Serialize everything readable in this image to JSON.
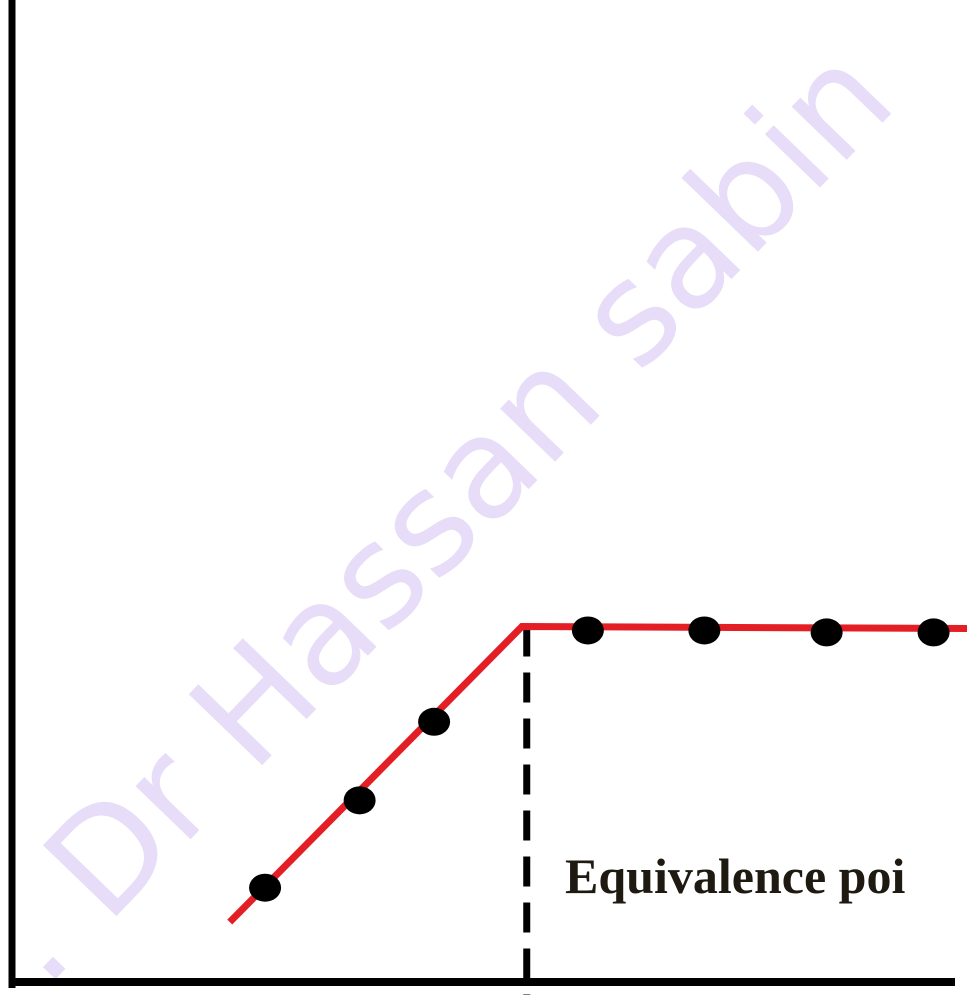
{
  "chart_data": {
    "type": "line",
    "watermark": ". Dr Hassan sabin",
    "annotation": "Equivalence poi",
    "xlim": [
      0,
      100
    ],
    "ylim": [
      0,
      100
    ],
    "line": {
      "color": "#e31e24",
      "x": [
        22.8,
        53.4,
        100
      ],
      "values": [
        6.1,
        36.2,
        36.0
      ]
    },
    "points": {
      "color": "#000000",
      "x": [
        26.5,
        36.4,
        44.2,
        60.3,
        72.5,
        85.3,
        96.5
      ],
      "values": [
        9.6,
        18.5,
        26.5,
        35.8,
        35.8,
        35.6,
        35.6
      ]
    },
    "equivalence_x": 53.9
  }
}
